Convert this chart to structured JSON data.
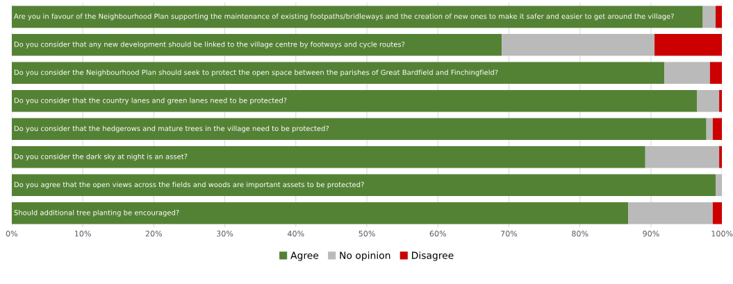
{
  "chart_data": {
    "type": "bar",
    "orientation": "horizontal",
    "stacked": true,
    "categories": [
      "Are you in favour of the Neighbourhood Plan supporting the maintenance of existing footpaths/bridleways and the creation of new ones to make it safer and easier to get around the village?",
      "Do you consider that any new development should be linked to the village centre by footways and cycle routes?",
      "Do you consider the Neighbourhood Plan should seek to protect the open space between the parishes of Great Bardfield and Finchingfield?",
      "Do you consider that the country lanes and green lanes need to be protected?",
      "Do you consider that the hedgerows and mature trees in the village need to be protected?",
      "Do you consider the dark sky at night is an asset?",
      "Do you agree that the open views across the fields and woods are important assets to be protected?",
      "Should additional tree planting be encouraged?"
    ],
    "series": [
      {
        "name": "Agree",
        "color": "#548235",
        "values": [
          97.3,
          69.0,
          91.9,
          96.5,
          97.8,
          89.2,
          99.1,
          86.8
        ]
      },
      {
        "name": "No opinion",
        "color": "#bababa",
        "values": [
          1.8,
          21.5,
          6.4,
          3.1,
          0.9,
          10.4,
          0.9,
          11.9
        ]
      },
      {
        "name": "Disagree",
        "color": "#cc0000",
        "values": [
          0.9,
          9.5,
          1.7,
          0.4,
          1.3,
          0.4,
          0,
          1.3
        ]
      }
    ],
    "xlim": [
      0,
      100
    ],
    "xticks": [
      {
        "value": 0,
        "label": "0%"
      },
      {
        "value": 10,
        "label": "10%"
      },
      {
        "value": 20,
        "label": "20%"
      },
      {
        "value": 30,
        "label": "30%"
      },
      {
        "value": 40,
        "label": "40%"
      },
      {
        "value": 50,
        "label": "50%"
      },
      {
        "value": 60,
        "label": "60%"
      },
      {
        "value": 70,
        "label": "70%"
      },
      {
        "value": 80,
        "label": "80%"
      },
      {
        "value": 90,
        "label": "90%"
      },
      {
        "value": 100,
        "label": "100%"
      }
    ],
    "grid": "x",
    "legend": "bottom"
  }
}
